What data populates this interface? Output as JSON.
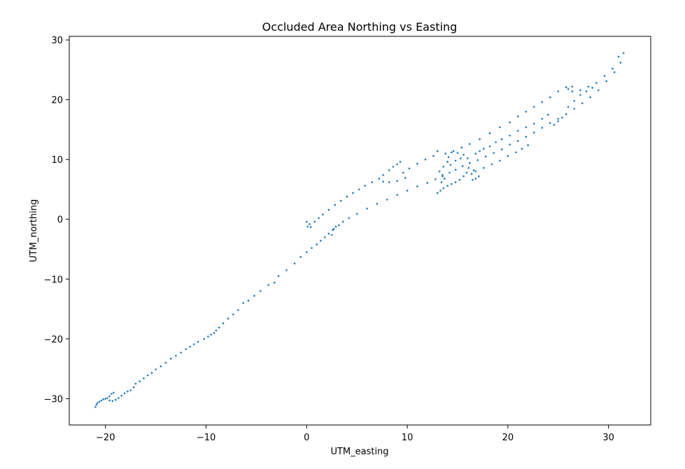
{
  "chart_data": {
    "type": "scatter",
    "title": "Occluded Area Northing vs Easting",
    "xlabel": "UTM_easting",
    "ylabel": "UTM_northing",
    "xlim": [
      -23.6,
      34.2
    ],
    "ylim": [
      -34.4,
      30.6
    ],
    "xticks": [
      -20,
      -10,
      0,
      10,
      20,
      30
    ],
    "yticks": [
      -30,
      -20,
      -10,
      0,
      10,
      20,
      30
    ],
    "xtick_labels": [
      "−20",
      "−10",
      "0",
      "10",
      "20",
      "30"
    ],
    "ytick_labels": [
      "−30",
      "−20",
      "−10",
      "0",
      "10",
      "20",
      "30"
    ],
    "grid": false,
    "legend": false,
    "marker_color": "#1f77b4",
    "series": [
      {
        "points": [
          [
            -21.0,
            -31.4
          ],
          [
            -20.9,
            -31.0
          ],
          [
            -20.8,
            -30.7
          ],
          [
            -20.6,
            -30.5
          ],
          [
            -20.4,
            -30.3
          ],
          [
            -20.2,
            -30.1
          ],
          [
            -20.0,
            -30.0
          ],
          [
            -19.8,
            -29.9
          ],
          [
            -19.6,
            -29.6
          ],
          [
            -19.4,
            -29.2
          ],
          [
            -19.2,
            -29.0
          ],
          [
            -19.6,
            -30.3
          ],
          [
            -19.3,
            -30.4
          ],
          [
            -19.0,
            -30.2
          ],
          [
            -18.7,
            -29.9
          ],
          [
            -18.4,
            -29.5
          ],
          [
            -18.1,
            -29.1
          ],
          [
            -17.8,
            -28.8
          ],
          [
            -17.5,
            -28.6
          ],
          [
            -17.2,
            -28.1
          ],
          [
            -17.0,
            -27.5
          ],
          [
            -16.6,
            -27.1
          ],
          [
            -16.2,
            -26.6
          ],
          [
            -15.8,
            -26.1
          ],
          [
            -15.4,
            -25.7
          ],
          [
            -15.0,
            -25.1
          ],
          [
            -14.5,
            -24.6
          ],
          [
            -14.0,
            -24.0
          ],
          [
            -13.5,
            -23.3
          ],
          [
            -13.0,
            -22.8
          ],
          [
            -12.5,
            -22.3
          ],
          [
            -12.0,
            -21.7
          ],
          [
            -11.6,
            -21.3
          ],
          [
            -11.2,
            -20.9
          ],
          [
            -10.8,
            -20.5
          ],
          [
            -10.2,
            -20.0
          ],
          [
            -9.8,
            -19.6
          ],
          [
            -9.5,
            -19.3
          ],
          [
            -9.2,
            -19.0
          ],
          [
            -9.0,
            -18.6
          ],
          [
            -8.7,
            -18.1
          ],
          [
            -8.3,
            -17.4
          ],
          [
            -7.8,
            -16.6
          ],
          [
            -7.3,
            -15.9
          ],
          [
            -6.8,
            -15.2
          ],
          [
            -6.3,
            -14.0
          ],
          [
            -5.8,
            -13.6
          ],
          [
            -5.2,
            -12.8
          ],
          [
            -4.6,
            -12.0
          ],
          [
            -3.8,
            -11.0
          ],
          [
            -3.2,
            -10.6
          ],
          [
            -2.8,
            -9.5
          ],
          [
            -2.0,
            -8.5
          ],
          [
            -1.2,
            -7.4
          ],
          [
            -0.6,
            -6.3
          ],
          [
            0.0,
            -5.5
          ],
          [
            0.5,
            -4.8
          ],
          [
            1.0,
            -4.2
          ],
          [
            1.4,
            -3.6
          ],
          [
            1.8,
            -3.0
          ],
          [
            2.2,
            -2.4
          ],
          [
            2.6,
            -1.8
          ],
          [
            2.9,
            -1.2
          ],
          [
            2.5,
            -2.6
          ],
          [
            2.7,
            -1.6
          ],
          [
            3.2,
            -1.0
          ],
          [
            3.6,
            -0.4
          ],
          [
            4.2,
            0.2
          ],
          [
            5.0,
            0.9
          ],
          [
            6.0,
            1.8
          ],
          [
            7.0,
            2.6
          ],
          [
            8.0,
            3.3
          ],
          [
            9.0,
            4.1
          ],
          [
            10.0,
            4.8
          ],
          [
            11.0,
            5.5
          ],
          [
            12.0,
            6.1
          ],
          [
            12.8,
            6.7
          ],
          [
            13.5,
            7.2
          ],
          [
            14.2,
            7.8
          ],
          [
            14.8,
            8.3
          ],
          [
            15.5,
            8.9
          ],
          [
            16.2,
            9.4
          ],
          [
            17.0,
            9.9
          ],
          [
            17.8,
            10.5
          ],
          [
            18.6,
            11.1
          ],
          [
            19.4,
            11.7
          ],
          [
            20.2,
            12.5
          ],
          [
            21.0,
            13.1
          ],
          [
            21.8,
            13.8
          ],
          [
            22.6,
            14.5
          ],
          [
            23.4,
            15.3
          ],
          [
            24.2,
            16.1
          ],
          [
            25.0,
            16.8
          ],
          [
            25.8,
            17.6
          ],
          [
            26.6,
            18.5
          ],
          [
            27.4,
            19.4
          ],
          [
            28.2,
            20.4
          ],
          [
            29.0,
            21.6
          ],
          [
            29.8,
            23.1
          ],
          [
            30.6,
            24.6
          ],
          [
            31.2,
            26.2
          ],
          [
            31.5,
            27.8
          ],
          [
            31.0,
            27.2
          ],
          [
            30.4,
            25.2
          ],
          [
            29.6,
            24.0
          ],
          [
            28.8,
            22.8
          ],
          [
            28.0,
            22.2
          ],
          [
            27.2,
            21.6
          ],
          [
            26.4,
            21.4
          ],
          [
            25.8,
            22.1
          ],
          [
            25.0,
            21.4
          ],
          [
            24.2,
            20.4
          ],
          [
            23.4,
            19.6
          ],
          [
            22.6,
            18.8
          ],
          [
            21.8,
            18.0
          ],
          [
            21.0,
            17.2
          ],
          [
            20.2,
            16.2
          ],
          [
            19.2,
            15.4
          ],
          [
            18.2,
            14.4
          ],
          [
            17.2,
            13.4
          ],
          [
            16.2,
            12.6
          ],
          [
            15.4,
            12.0
          ],
          [
            14.6,
            11.4
          ],
          [
            13.8,
            11.0
          ],
          [
            13.0,
            11.4
          ],
          [
            12.6,
            10.6
          ],
          [
            11.8,
            10.0
          ],
          [
            11.0,
            9.3
          ],
          [
            10.2,
            8.5
          ],
          [
            9.6,
            7.8
          ],
          [
            9.3,
            9.6
          ],
          [
            9.0,
            9.2
          ],
          [
            8.6,
            8.8
          ],
          [
            8.2,
            8.2
          ],
          [
            7.6,
            7.4
          ],
          [
            7.2,
            6.8
          ],
          [
            7.6,
            6.3
          ],
          [
            8.2,
            6.2
          ],
          [
            9.0,
            6.4
          ],
          [
            9.8,
            6.9
          ],
          [
            6.5,
            6.2
          ],
          [
            5.8,
            5.6
          ],
          [
            5.2,
            5.0
          ],
          [
            4.6,
            4.4
          ],
          [
            4.0,
            3.8
          ],
          [
            3.4,
            3.1
          ],
          [
            2.8,
            2.4
          ],
          [
            2.2,
            1.6
          ],
          [
            1.6,
            0.8
          ],
          [
            1.2,
            0.2
          ],
          [
            0.8,
            -0.4
          ],
          [
            0.3,
            -0.8
          ],
          [
            0.1,
            -1.2
          ],
          [
            0.4,
            -1.3
          ],
          [
            0.0,
            -0.4
          ],
          [
            13.0,
            4.4
          ],
          [
            13.3,
            4.8
          ],
          [
            13.6,
            5.2
          ],
          [
            14.0,
            5.6
          ],
          [
            14.4,
            5.9
          ],
          [
            14.8,
            6.2
          ],
          [
            15.2,
            6.6
          ],
          [
            15.6,
            7.2
          ],
          [
            15.9,
            7.8
          ],
          [
            16.1,
            8.6
          ],
          [
            16.2,
            9.4
          ],
          [
            16.0,
            10.2
          ],
          [
            15.6,
            10.8
          ],
          [
            15.0,
            11.1
          ],
          [
            14.4,
            11.2
          ],
          [
            14.1,
            10.4
          ],
          [
            14.0,
            9.6
          ],
          [
            14.3,
            9.1
          ],
          [
            14.8,
            9.8
          ],
          [
            15.3,
            10.2
          ],
          [
            13.4,
            6.2
          ],
          [
            13.7,
            6.8
          ],
          [
            13.5,
            7.4
          ],
          [
            13.2,
            8.0
          ],
          [
            13.6,
            8.8
          ],
          [
            16.5,
            6.6
          ],
          [
            16.8,
            6.8
          ],
          [
            17.1,
            7.2
          ],
          [
            16.4,
            7.6
          ],
          [
            16.6,
            8.2
          ],
          [
            16.8,
            11.0
          ],
          [
            17.2,
            11.4
          ],
          [
            17.6,
            11.8
          ],
          [
            18.2,
            12.2
          ],
          [
            18.8,
            12.9
          ],
          [
            19.4,
            13.4
          ],
          [
            20.2,
            14.0
          ],
          [
            21.0,
            14.8
          ],
          [
            21.8,
            15.4
          ],
          [
            22.6,
            16.0
          ],
          [
            23.4,
            16.8
          ],
          [
            24.0,
            17.5
          ],
          [
            24.6,
            15.8
          ],
          [
            25.0,
            16.4
          ],
          [
            25.4,
            17.0
          ],
          [
            26.0,
            18.8
          ],
          [
            26.6,
            19.8
          ],
          [
            27.2,
            20.8
          ],
          [
            27.8,
            21.4
          ],
          [
            28.4,
            22.0
          ],
          [
            22.0,
            12.4
          ],
          [
            21.4,
            11.8
          ],
          [
            20.8,
            11.2
          ],
          [
            20.0,
            10.6
          ],
          [
            19.2,
            9.8
          ],
          [
            18.4,
            9.2
          ],
          [
            17.6,
            8.6
          ],
          [
            16.8,
            8.0
          ],
          [
            26.4,
            22.2
          ],
          [
            26.0,
            21.8
          ]
        ]
      }
    ]
  }
}
